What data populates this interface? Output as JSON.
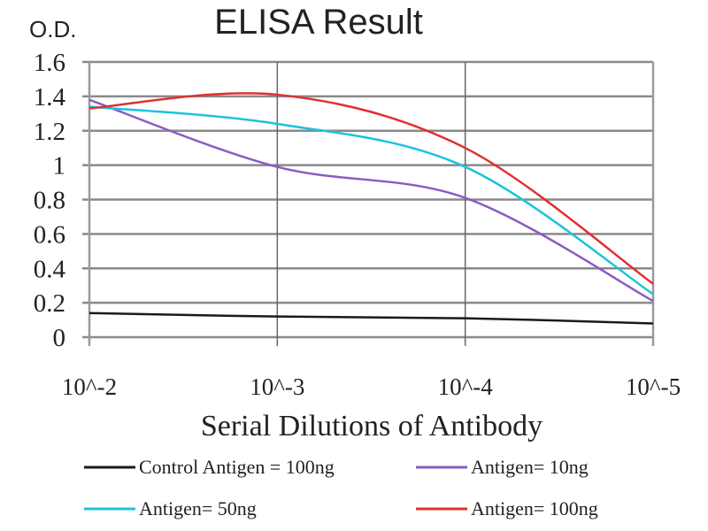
{
  "chart_data": {
    "type": "line",
    "title": "ELISA Result",
    "ylabel": "O.D.",
    "xlabel": "Serial Dilutions of Antibody",
    "categories": [
      "10^-2",
      "10^-3",
      "10^-4",
      "10^-5"
    ],
    "ylim": [
      0,
      1.6
    ],
    "yticks": [
      "0",
      "0.2",
      "0.4",
      "0.6",
      "0.8",
      "1",
      "1.2",
      "1.4",
      "1.6"
    ],
    "grid": true,
    "legend_position": "bottom",
    "series": [
      {
        "name": "Control Antigen = 100ng",
        "color": "#1a1a1a",
        "values": [
          0.14,
          0.12,
          0.11,
          0.08
        ]
      },
      {
        "name": "Antigen= 10ng",
        "color": "#8a5cc0",
        "values": [
          1.38,
          0.99,
          0.81,
          0.21
        ]
      },
      {
        "name": "Antigen= 50ng",
        "color": "#1cc3dc",
        "values": [
          1.34,
          1.24,
          0.99,
          0.25
        ]
      },
      {
        "name": "Antigen= 100ng",
        "color": "#e03030",
        "values": [
          1.33,
          1.41,
          1.1,
          0.31
        ]
      }
    ]
  }
}
